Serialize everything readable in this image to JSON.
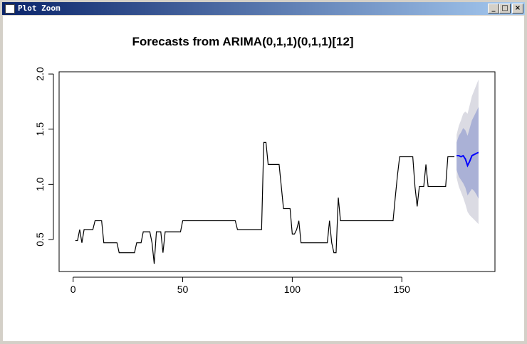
{
  "window": {
    "title": "Plot Zoom"
  },
  "chart_data": {
    "type": "line",
    "title": "Forecasts from ARIMA(0,1,1)(0,1,1)[12]",
    "series": [
      {
        "color": "#000000",
        "x": [
          1,
          2,
          3,
          4,
          5,
          9,
          10,
          13,
          14,
          20,
          21,
          28,
          29,
          31,
          32,
          35,
          36,
          37,
          38,
          40,
          41,
          42,
          49,
          50,
          74,
          75,
          86,
          87,
          88,
          89,
          94,
          96,
          99,
          100,
          101,
          102,
          103,
          104,
          116,
          117,
          118,
          119,
          120,
          121,
          122,
          146,
          147,
          148,
          149,
          155,
          156,
          157,
          158,
          160,
          161,
          162,
          170,
          171,
          174
        ],
        "values": [
          0.49,
          0.49,
          0.59,
          0.47,
          0.59,
          0.59,
          0.67,
          0.67,
          0.47,
          0.47,
          0.38,
          0.38,
          0.47,
          0.47,
          0.57,
          0.57,
          0.47,
          0.28,
          0.57,
          0.57,
          0.38,
          0.57,
          0.57,
          0.67,
          0.67,
          0.59,
          0.59,
          1.38,
          1.38,
          1.18,
          1.18,
          0.78,
          0.78,
          0.55,
          0.55,
          0.59,
          0.67,
          0.47,
          0.47,
          0.67,
          0.47,
          0.38,
          0.38,
          0.88,
          0.67,
          0.67,
          0.88,
          1.08,
          1.25,
          1.25,
          0.98,
          0.8,
          0.98,
          0.98,
          1.18,
          0.98,
          0.98,
          1.25,
          1.25
        ]
      },
      {
        "color": "#0000ff",
        "x": [
          175,
          176,
          177,
          178,
          179,
          180,
          181,
          182,
          183,
          184,
          185
        ],
        "values": [
          1.26,
          1.26,
          1.25,
          1.26,
          1.23,
          1.17,
          1.21,
          1.26,
          1.27,
          1.28,
          1.29
        ]
      }
    ],
    "bands": [
      {
        "color": "#dbdbe3",
        "x": [
          175,
          176,
          177,
          178,
          179,
          180,
          181,
          182,
          183,
          184,
          185
        ],
        "lower": [
          1.06,
          0.98,
          0.93,
          0.88,
          0.82,
          0.75,
          0.72,
          0.7,
          0.68,
          0.66,
          0.64
        ],
        "upper": [
          1.45,
          1.53,
          1.58,
          1.64,
          1.66,
          1.64,
          1.72,
          1.8,
          1.85,
          1.9,
          1.95
        ]
      },
      {
        "color": "#aab1d6",
        "x": [
          175,
          176,
          177,
          178,
          179,
          180,
          181,
          182,
          183,
          184,
          185
        ],
        "lower": [
          1.13,
          1.07,
          1.04,
          1.01,
          0.97,
          0.9,
          0.93,
          0.96,
          0.94,
          0.91,
          0.87
        ],
        "upper": [
          1.38,
          1.44,
          1.47,
          1.51,
          1.49,
          1.44,
          1.51,
          1.58,
          1.62,
          1.66,
          1.7
        ]
      }
    ],
    "xlim": [
      -6.4,
      192.5
    ],
    "xticks": [
      0,
      50,
      100,
      150
    ],
    "ylim": [
      0.21,
      2.02
    ],
    "yticks": [
      0.5,
      {
        "value": 1.0,
        "label": "1.0"
      },
      1.5,
      {
        "value": 2.0,
        "label": "2.0"
      }
    ]
  }
}
